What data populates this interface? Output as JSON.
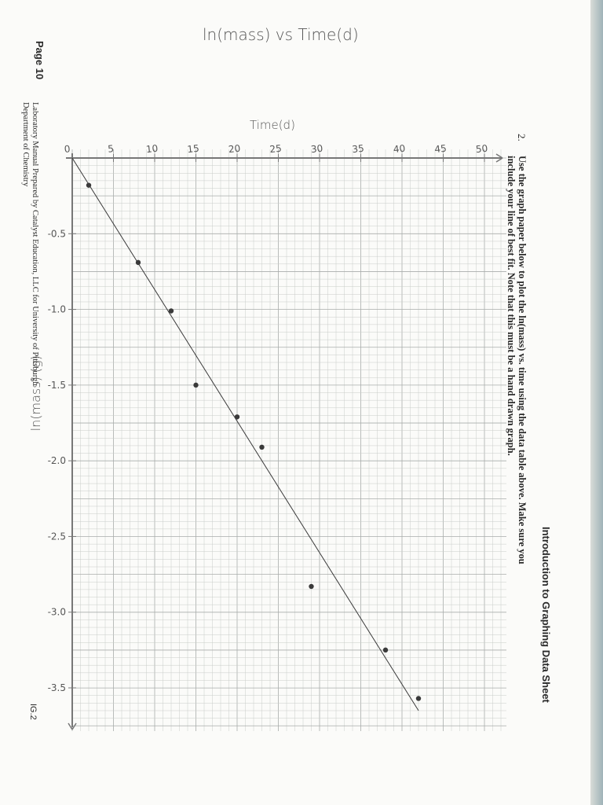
{
  "sheet": {
    "header": "Introduction to Graphing Data Sheet",
    "question_number": "2.",
    "question_text_line1": "Use the graph paper below to plot the ln(mass) vs. time using the data table above. Make sure you",
    "question_text_line2": "include your line of best fit. Note that this must be a hand drawn graph.",
    "footer_page": "Page 10",
    "footer_credit_line1": "Laboratory Manual Prepared by Catalyst Education, LLC for University of Pittsburgh",
    "footer_credit_line2": "Department of Chemistry",
    "footer_code": "IG.2",
    "margin_note": "ln(mass) (g)"
  },
  "chart_data": {
    "type": "scatter",
    "title": "ln(mass) vs Time(d)",
    "xlabel": "Time(d)",
    "ylabel": "",
    "xlim": [
      0,
      50
    ],
    "ylim": [
      -3.8,
      0
    ],
    "x_ticks": [
      0,
      5,
      10,
      15,
      20,
      25,
      30,
      35,
      40,
      45,
      50
    ],
    "y_ticks": [
      -0.5,
      -1.0,
      -1.5,
      -2.0,
      -2.5,
      -3.0,
      -3.5
    ],
    "x_tick_labels": [
      "0",
      "5",
      "10",
      "15",
      "20",
      "25",
      "30",
      "35",
      "40",
      "45",
      "50"
    ],
    "y_tick_labels": [
      "-0.5",
      "-1.0",
      "-1.5",
      "-2.0",
      "-2.5",
      "-3.0",
      "-3.5"
    ],
    "series": [
      {
        "x": [
          2,
          8,
          12,
          15,
          20,
          23,
          29,
          38,
          42
        ],
        "y": [
          -0.18,
          -0.69,
          -1.01,
          -1.5,
          -1.71,
          -1.91,
          -2.83,
          -3.25,
          -3.57
        ]
      }
    ],
    "best_fit_line": {
      "x": [
        0,
        42
      ],
      "y": [
        0,
        -3.65
      ]
    },
    "grid": true,
    "colors": {
      "ink": "#3a3a3a",
      "grid": "#c9ccc9",
      "grid_major": "#a9adab",
      "axis": "#777777"
    }
  }
}
